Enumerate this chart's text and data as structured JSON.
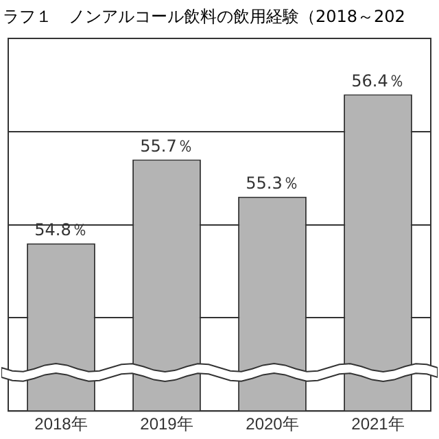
{
  "chart_data": {
    "type": "bar",
    "title": "ラフ１　ノンアルコール飲料の飲用経験（2018～202",
    "categories": [
      "2018年",
      "2019年",
      "2020年",
      "2021年"
    ],
    "values": [
      54.8,
      55.7,
      55.3,
      56.4
    ],
    "color": "#b4b4b4",
    "value_labels": [
      "54.8％",
      "55.7％",
      "55.3％",
      "56.4％"
    ],
    "ylim": [
      53,
      57
    ],
    "yticks": [
      {
        "value": 54,
        "label": null
      },
      {
        "value": 55,
        "label": null
      },
      {
        "value": 56,
        "label": null
      }
    ],
    "tick_labels": "x",
    "grid": "y",
    "legend": false
  }
}
